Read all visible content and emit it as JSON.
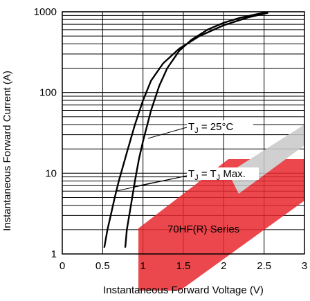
{
  "chart_data": {
    "type": "line",
    "xlabel": "Instantaneous Forward Voltage (V)",
    "ylabel": "Instantaneous Forward Current (A)",
    "xlim": [
      0,
      3
    ],
    "ylim": [
      1,
      1000
    ],
    "yscale": "log",
    "grid": true,
    "x_ticks": [
      "0",
      "0.5",
      "1",
      "1.5",
      "2",
      "2.5",
      "3"
    ],
    "y_ticks": [
      "1",
      "10",
      "100",
      "1000"
    ],
    "annotations": {
      "tj25": {
        "prefix": "T",
        "sub": "J",
        "suffix": " = 25°C"
      },
      "tjmax": {
        "prefix": "T",
        "sub": "J",
        "mid": " = T",
        "sub2": "J",
        "suffix": "  Max."
      },
      "series_label": "70HF(R) Series"
    },
    "watermark_colors": {
      "red": "#e8282e",
      "gray": "#c8c8c8"
    },
    "series": [
      {
        "x": [
          0.52,
          0.56,
          0.6,
          0.65,
          0.7,
          0.8,
          0.9,
          1.0,
          1.1,
          1.25,
          1.45,
          1.7,
          2.0,
          2.3,
          2.55
        ],
        "y": [
          1.2,
          2.0,
          3.0,
          5.0,
          8.0,
          18.0,
          40.0,
          80.0,
          140.0,
          230.0,
          350.0,
          500.0,
          680.0,
          850.0,
          970.0
        ]
      },
      {
        "x": [
          0.78,
          0.8,
          0.85,
          0.9,
          0.95,
          1.0,
          1.1,
          1.2,
          1.3,
          1.45,
          1.6,
          1.8,
          2.0,
          2.2,
          2.4,
          2.55
        ],
        "y": [
          1.2,
          2.0,
          4.0,
          8.0,
          15.0,
          25.0,
          60.0,
          120.0,
          200.0,
          330.0,
          450.0,
          600.0,
          730.0,
          840.0,
          930.0,
          990.0
        ]
      }
    ]
  }
}
